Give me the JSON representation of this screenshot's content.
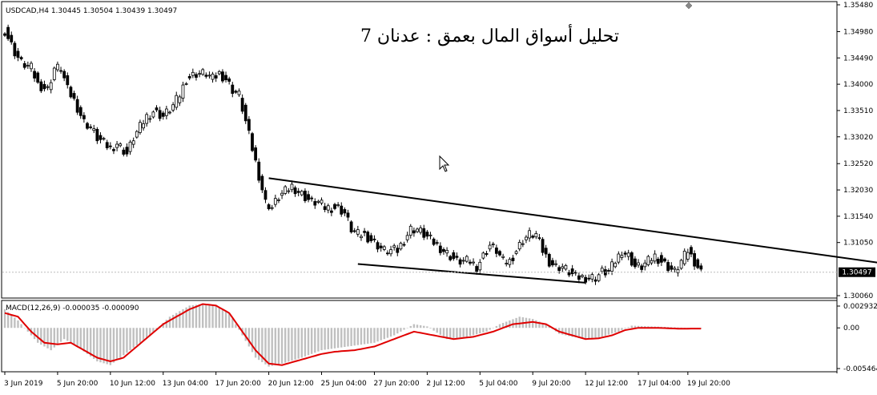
{
  "header": {
    "symbol_line": "USDCAD,H4  1.30445 1.30504 1.30439 1.30497",
    "arabic_title": "تحليل أسواق المال بعمق : عدنان 7"
  },
  "colors": {
    "background": "#ffffff",
    "candle": "#000000",
    "trendline": "#000000",
    "macd_histogram": "#c0c0c0",
    "macd_signal": "#e00000",
    "grid_border": "#000000",
    "price_marker_bg": "#000000",
    "price_marker_text": "#ffffff"
  },
  "icons": {
    "cursor": "arrow-cursor-icon",
    "top_marker": "diamond-marker-icon"
  },
  "chart_data": [
    {
      "type": "candlestick",
      "title": "",
      "symbol": "USDCAD",
      "timeframe": "H4",
      "ylim": [
        1.3006,
        1.3548
      ],
      "current_price": 1.30497,
      "current_price_label": "1.30497",
      "y_tick_labels": [
        "1.35480",
        "1.34980",
        "1.34490",
        "1.34000",
        "1.33510",
        "1.33020",
        "1.32520",
        "1.32030",
        "1.31540",
        "1.31050",
        "1.30060"
      ],
      "y_tick_values": [
        1.3548,
        1.3498,
        1.3449,
        1.34,
        1.3351,
        1.3302,
        1.3252,
        1.3203,
        1.3154,
        1.3105,
        1.3006
      ],
      "x_tick_labels": [
        "3 Jun 2019",
        "5 Jun 20:00",
        "10 Jun 12:00",
        "13 Jun 04:00",
        "17 Jun 20:00",
        "20 Jun 12:00",
        "25 Jun 04:00",
        "27 Jun 20:00",
        "2 Jul 12:00",
        "5 Jul 04:00",
        "9 Jul 20:00",
        "12 Jul 12:00",
        "17 Jul 04:00",
        "19 Jul 20:00"
      ],
      "x_tick_bars": [
        0,
        16,
        32,
        48,
        64,
        80,
        96,
        112,
        128,
        144,
        160,
        176,
        192,
        207
      ],
      "n_bars": 212,
      "close_anchors": [
        [
          0,
          1.35
        ],
        [
          3,
          1.346
        ],
        [
          5,
          1.344
        ],
        [
          8,
          1.343
        ],
        [
          10,
          1.34
        ],
        [
          13,
          1.339
        ],
        [
          15,
          1.343
        ],
        [
          17,
          1.343
        ],
        [
          19,
          1.339
        ],
        [
          21,
          1.337
        ],
        [
          24,
          1.333
        ],
        [
          26,
          1.332
        ],
        [
          28,
          1.33
        ],
        [
          30,
          1.329
        ],
        [
          32,
          1.328
        ],
        [
          34,
          1.329
        ],
        [
          37,
          1.327
        ],
        [
          39,
          1.33
        ],
        [
          41,
          1.332
        ],
        [
          43,
          1.334
        ],
        [
          45,
          1.335
        ],
        [
          48,
          1.334
        ],
        [
          51,
          1.336
        ],
        [
          53,
          1.338
        ],
        [
          55,
          1.341
        ],
        [
          58,
          1.342
        ],
        [
          61,
          1.342
        ],
        [
          63,
          1.341
        ],
        [
          65,
          1.342
        ],
        [
          67,
          1.341
        ],
        [
          69,
          1.339
        ],
        [
          71,
          1.338
        ],
        [
          73,
          1.333
        ],
        [
          75,
          1.328
        ],
        [
          77,
          1.323
        ],
        [
          79,
          1.318
        ],
        [
          81,
          1.317
        ],
        [
          83,
          1.319
        ],
        [
          85,
          1.32
        ],
        [
          87,
          1.321
        ],
        [
          89,
          1.32
        ],
        [
          91,
          1.319
        ],
        [
          93,
          1.318
        ],
        [
          95,
          1.318
        ],
        [
          97,
          1.317
        ],
        [
          99,
          1.317
        ],
        [
          101,
          1.317
        ],
        [
          103,
          1.316
        ],
        [
          105,
          1.313
        ],
        [
          107,
          1.312
        ],
        [
          109,
          1.312
        ],
        [
          111,
          1.311
        ],
        [
          113,
          1.31
        ],
        [
          115,
          1.309
        ],
        [
          117,
          1.309
        ],
        [
          119,
          1.309
        ],
        [
          121,
          1.311
        ],
        [
          123,
          1.313
        ],
        [
          125,
          1.313
        ],
        [
          127,
          1.312
        ],
        [
          129,
          1.311
        ],
        [
          131,
          1.31
        ],
        [
          133,
          1.309
        ],
        [
          135,
          1.308
        ],
        [
          137,
          1.307
        ],
        [
          139,
          1.307
        ],
        [
          141,
          1.307
        ],
        [
          143,
          1.306
        ],
        [
          145,
          1.308
        ],
        [
          147,
          1.31
        ],
        [
          149,
          1.309
        ],
        [
          151,
          1.307
        ],
        [
          153,
          1.307
        ],
        [
          155,
          1.309
        ],
        [
          157,
          1.311
        ],
        [
          159,
          1.312
        ],
        [
          161,
          1.312
        ],
        [
          163,
          1.309
        ],
        [
          165,
          1.307
        ],
        [
          167,
          1.306
        ],
        [
          169,
          1.306
        ],
        [
          171,
          1.305
        ],
        [
          173,
          1.304
        ],
        [
          175,
          1.304
        ],
        [
          177,
          1.304
        ],
        [
          179,
          1.304
        ],
        [
          181,
          1.305
        ],
        [
          183,
          1.305
        ],
        [
          185,
          1.307
        ],
        [
          187,
          1.309
        ],
        [
          189,
          1.308
        ],
        [
          191,
          1.306
        ],
        [
          193,
          1.306
        ],
        [
          195,
          1.307
        ],
        [
          197,
          1.308
        ],
        [
          199,
          1.307
        ],
        [
          201,
          1.306
        ],
        [
          203,
          1.305
        ],
        [
          205,
          1.307
        ],
        [
          207,
          1.309
        ],
        [
          209,
          1.307
        ],
        [
          211,
          1.305
        ]
      ],
      "trendlines": [
        {
          "name": "upper",
          "start": [
            80,
            1.3225
          ],
          "end": [
            270,
            1.3063
          ]
        },
        {
          "name": "lower",
          "start": [
            107,
            1.3065
          ],
          "end": [
            176,
            1.303
          ]
        }
      ]
    },
    {
      "type": "line",
      "title": "MACD(12,26,9) -0.000035 -0.000090",
      "ylim": [
        -0.005464,
        0.002932
      ],
      "y_tick_labels": [
        "0.002932",
        "0.00",
        "-0.005464"
      ],
      "y_tick_values": [
        0.002932,
        0.0,
        -0.005464
      ],
      "series": [
        {
          "type": "histogram",
          "anchors": [
            [
              0,
              0.0025
            ],
            [
              4,
              0.001
            ],
            [
              10,
              -0.002
            ],
            [
              14,
              -0.003
            ],
            [
              18,
              -0.0015
            ],
            [
              22,
              -0.0025
            ],
            [
              28,
              -0.0045
            ],
            [
              32,
              -0.005
            ],
            [
              38,
              -0.003
            ],
            [
              44,
              -0.001
            ],
            [
              50,
              0.0015
            ],
            [
              56,
              0.003
            ],
            [
              60,
              0.0032
            ],
            [
              64,
              0.003
            ],
            [
              68,
              0.002
            ],
            [
              72,
              -0.001
            ],
            [
              76,
              -0.004
            ],
            [
              80,
              -0.0052
            ],
            [
              84,
              -0.0048
            ],
            [
              90,
              -0.004
            ],
            [
              96,
              -0.003
            ],
            [
              104,
              -0.0025
            ],
            [
              112,
              -0.002
            ],
            [
              118,
              -0.001
            ],
            [
              124,
              0.0005
            ],
            [
              128,
              0.0002
            ],
            [
              134,
              -0.0015
            ],
            [
              140,
              -0.0012
            ],
            [
              146,
              -0.0005
            ],
            [
              150,
              0.0005
            ],
            [
              156,
              0.0015
            ],
            [
              160,
              0.0012
            ],
            [
              164,
              0.0005
            ],
            [
              168,
              -0.0008
            ],
            [
              172,
              -0.0012
            ],
            [
              176,
              -0.0015
            ],
            [
              180,
              -0.0013
            ],
            [
              186,
              -0.0005
            ],
            [
              190,
              0.0003
            ],
            [
              196,
              0.0002
            ],
            [
              202,
              0.0001
            ],
            [
              207,
              0.0
            ],
            [
              211,
              -4e-05
            ]
          ]
        },
        {
          "type": "signal",
          "anchors": [
            [
              0,
              0.002
            ],
            [
              4,
              0.0015
            ],
            [
              8,
              -0.0005
            ],
            [
              12,
              -0.002
            ],
            [
              16,
              -0.0022
            ],
            [
              20,
              -0.002
            ],
            [
              24,
              -0.003
            ],
            [
              28,
              -0.004
            ],
            [
              32,
              -0.0045
            ],
            [
              36,
              -0.004
            ],
            [
              40,
              -0.0025
            ],
            [
              44,
              -0.001
            ],
            [
              48,
              0.0005
            ],
            [
              52,
              0.0015
            ],
            [
              56,
              0.0025
            ],
            [
              60,
              0.0032
            ],
            [
              64,
              0.003
            ],
            [
              68,
              0.002
            ],
            [
              72,
              -0.0005
            ],
            [
              76,
              -0.003
            ],
            [
              80,
              -0.0048
            ],
            [
              84,
              -0.005
            ],
            [
              88,
              -0.0045
            ],
            [
              92,
              -0.004
            ],
            [
              96,
              -0.0035
            ],
            [
              100,
              -0.0032
            ],
            [
              106,
              -0.003
            ],
            [
              112,
              -0.0025
            ],
            [
              118,
              -0.0015
            ],
            [
              124,
              -0.0005
            ],
            [
              130,
              -0.001
            ],
            [
              136,
              -0.0015
            ],
            [
              142,
              -0.0012
            ],
            [
              148,
              -0.0005
            ],
            [
              154,
              0.0005
            ],
            [
              160,
              0.0008
            ],
            [
              164,
              0.0005
            ],
            [
              168,
              -0.0005
            ],
            [
              172,
              -0.001
            ],
            [
              176,
              -0.0015
            ],
            [
              180,
              -0.0014
            ],
            [
              184,
              -0.001
            ],
            [
              188,
              -0.0003
            ],
            [
              192,
              0.0
            ],
            [
              198,
              0.0
            ],
            [
              204,
              -0.0001
            ],
            [
              207,
              -0.0001
            ],
            [
              211,
              -9e-05
            ]
          ]
        }
      ]
    }
  ]
}
